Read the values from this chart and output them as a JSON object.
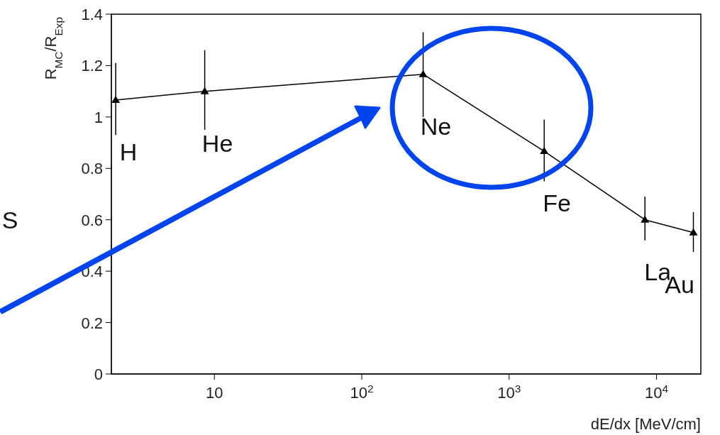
{
  "chart_data": {
    "type": "line",
    "xlabel": "dE/dx [MeV/cm]",
    "ylabel": "R$_{MC}$/R$_{Exp}$",
    "x": [
      2.14,
      8.6,
      261,
      1730,
      8350,
      17800
    ],
    "series": [
      {
        "color": "#000000",
        "values": [
          1.066,
          1.1,
          1.166,
          0.867,
          0.6,
          0.55
        ],
        "errors": [
          [
            0.93,
            1.21
          ],
          [
            0.95,
            1.26
          ],
          [
            1.0,
            1.33
          ],
          [
            0.75,
            0.99
          ],
          [
            0.52,
            0.69
          ],
          [
            0.475,
            0.63
          ]
        ]
      }
    ],
    "log": "x",
    "xlim": [
      2,
      20000
    ],
    "xticks": [
      10,
      {
        "value": 100,
        "label": "10$^{2}$"
      },
      {
        "value": 1000,
        "label": "10$^{3}$"
      },
      {
        "value": 10000,
        "label": "10$^{4}$"
      }
    ],
    "ylim": [
      0,
      1.4
    ],
    "yticks": [
      0,
      0.2,
      0.4,
      0.6,
      0.8,
      1,
      1.2,
      1.4
    ],
    "marker": "triangle",
    "line_style": "solid",
    "grid": false,
    "legend": false,
    "annotations": [
      {
        "text": "H",
        "x": 2.14,
        "y": 1.066
      },
      {
        "text": "He",
        "x": 8.6,
        "y": 1.1
      },
      {
        "text": "Ne",
        "x": 261,
        "y": 1.166
      },
      {
        "text": "Fe",
        "x": 1730,
        "y": 0.867
      },
      {
        "text": "La",
        "x": 8350,
        "y": 0.6
      },
      {
        "text": "Au",
        "x": 17800,
        "y": 0.55
      },
      "S"
    ]
  }
}
